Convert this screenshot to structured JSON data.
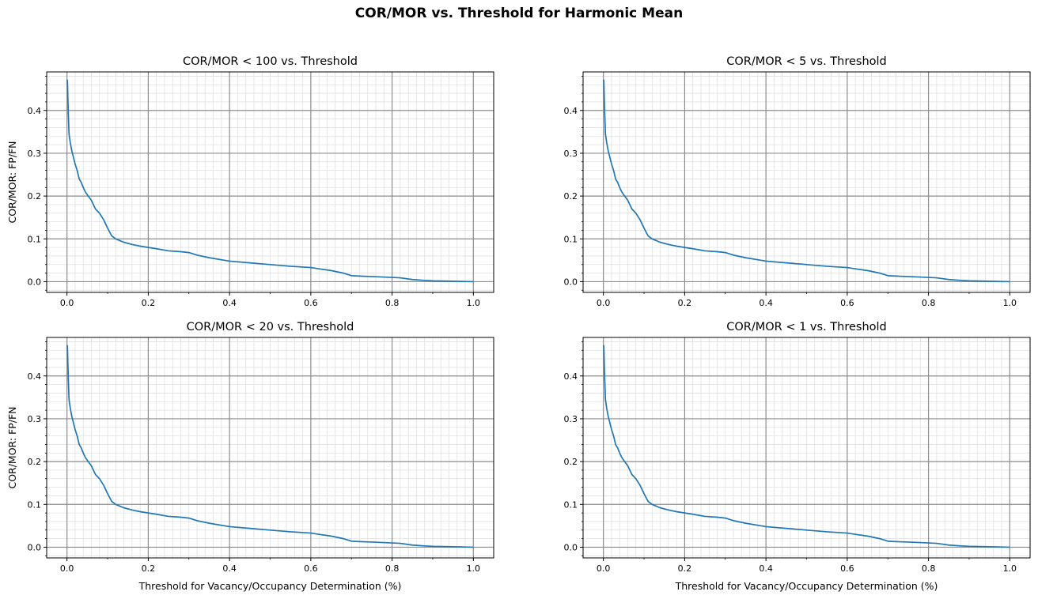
{
  "figure": {
    "suptitle": "COR/MOR vs. Threshold for Harmonic Mean"
  },
  "colors": {
    "line": "#1f77b4",
    "major_grid": "#8c8c8c",
    "minor_grid": "#e0e0e0",
    "axis": "#000000"
  },
  "chart_data": [
    {
      "type": "line",
      "title": "COR/MOR < 100 vs. Threshold",
      "xlabel": "",
      "ylabel": "COR/MOR: FP/FN",
      "xlim": [
        -0.05,
        1.05
      ],
      "ylim": [
        -0.025,
        0.49
      ],
      "xticks": [
        "0.0",
        "0.2",
        "0.4",
        "0.6",
        "0.8",
        "1.0"
      ],
      "yticks": [
        "0.0",
        "0.1",
        "0.2",
        "0.3",
        "0.4"
      ],
      "grid": true,
      "series": [
        {
          "x": [
            0.0,
            0.001,
            0.003,
            0.005,
            0.008,
            0.012,
            0.016,
            0.02,
            0.025,
            0.03,
            0.035,
            0.04,
            0.045,
            0.05,
            0.06,
            0.07,
            0.08,
            0.09,
            0.1,
            0.11,
            0.12,
            0.14,
            0.16,
            0.18,
            0.2,
            0.22,
            0.25,
            0.28,
            0.3,
            0.32,
            0.35,
            0.4,
            0.45,
            0.5,
            0.55,
            0.6,
            0.62,
            0.65,
            0.68,
            0.7,
            0.72,
            0.75,
            0.8,
            0.82,
            0.85,
            0.88,
            0.9,
            0.95,
            1.0
          ],
          "y": [
            0.472,
            0.47,
            0.4,
            0.345,
            0.325,
            0.305,
            0.29,
            0.275,
            0.26,
            0.24,
            0.232,
            0.22,
            0.21,
            0.203,
            0.19,
            0.17,
            0.16,
            0.145,
            0.125,
            0.107,
            0.1,
            0.092,
            0.087,
            0.083,
            0.08,
            0.077,
            0.072,
            0.07,
            0.068,
            0.062,
            0.056,
            0.048,
            0.044,
            0.04,
            0.036,
            0.033,
            0.03,
            0.026,
            0.02,
            0.014,
            0.013,
            0.012,
            0.01,
            0.009,
            0.005,
            0.003,
            0.002,
            0.001,
            0.0
          ]
        }
      ]
    },
    {
      "type": "line",
      "title": "COR/MOR < 5 vs. Threshold",
      "xlabel": "",
      "ylabel": "",
      "xlim": [
        -0.05,
        1.05
      ],
      "ylim": [
        -0.025,
        0.49
      ],
      "xticks": [
        "0.0",
        "0.2",
        "0.4",
        "0.6",
        "0.8",
        "1.0"
      ],
      "yticks": [
        "0.0",
        "0.1",
        "0.2",
        "0.3",
        "0.4"
      ],
      "grid": true,
      "series": [
        {
          "x": [
            0.0,
            0.001,
            0.003,
            0.005,
            0.008,
            0.012,
            0.016,
            0.02,
            0.025,
            0.03,
            0.035,
            0.04,
            0.045,
            0.05,
            0.06,
            0.07,
            0.08,
            0.09,
            0.1,
            0.11,
            0.12,
            0.14,
            0.16,
            0.18,
            0.2,
            0.22,
            0.25,
            0.28,
            0.3,
            0.32,
            0.35,
            0.4,
            0.45,
            0.5,
            0.55,
            0.6,
            0.62,
            0.65,
            0.68,
            0.7,
            0.72,
            0.75,
            0.8,
            0.82,
            0.85,
            0.88,
            0.9,
            0.95,
            1.0
          ],
          "y": [
            0.472,
            0.47,
            0.4,
            0.345,
            0.325,
            0.305,
            0.29,
            0.275,
            0.26,
            0.24,
            0.232,
            0.22,
            0.21,
            0.203,
            0.19,
            0.17,
            0.16,
            0.145,
            0.125,
            0.107,
            0.1,
            0.092,
            0.087,
            0.083,
            0.08,
            0.077,
            0.072,
            0.07,
            0.068,
            0.062,
            0.056,
            0.048,
            0.044,
            0.04,
            0.036,
            0.033,
            0.03,
            0.026,
            0.02,
            0.014,
            0.013,
            0.012,
            0.01,
            0.009,
            0.005,
            0.003,
            0.002,
            0.001,
            0.0
          ]
        }
      ]
    },
    {
      "type": "line",
      "title": "COR/MOR < 20 vs. Threshold",
      "xlabel": "Threshold for Vacancy/Occupancy Determination (%)",
      "ylabel": "COR/MOR: FP/FN",
      "xlim": [
        -0.05,
        1.05
      ],
      "ylim": [
        -0.025,
        0.49
      ],
      "xticks": [
        "0.0",
        "0.2",
        "0.4",
        "0.6",
        "0.8",
        "1.0"
      ],
      "yticks": [
        "0.0",
        "0.1",
        "0.2",
        "0.3",
        "0.4"
      ],
      "grid": true,
      "series": [
        {
          "x": [
            0.0,
            0.001,
            0.003,
            0.005,
            0.008,
            0.012,
            0.016,
            0.02,
            0.025,
            0.03,
            0.035,
            0.04,
            0.045,
            0.05,
            0.06,
            0.07,
            0.08,
            0.09,
            0.1,
            0.11,
            0.12,
            0.14,
            0.16,
            0.18,
            0.2,
            0.22,
            0.25,
            0.28,
            0.3,
            0.32,
            0.35,
            0.4,
            0.45,
            0.5,
            0.55,
            0.6,
            0.62,
            0.65,
            0.68,
            0.7,
            0.72,
            0.75,
            0.8,
            0.82,
            0.85,
            0.88,
            0.9,
            0.95,
            1.0
          ],
          "y": [
            0.472,
            0.47,
            0.4,
            0.345,
            0.325,
            0.305,
            0.29,
            0.275,
            0.26,
            0.24,
            0.232,
            0.22,
            0.21,
            0.203,
            0.19,
            0.17,
            0.16,
            0.145,
            0.125,
            0.107,
            0.1,
            0.092,
            0.087,
            0.083,
            0.08,
            0.077,
            0.072,
            0.07,
            0.068,
            0.062,
            0.056,
            0.048,
            0.044,
            0.04,
            0.036,
            0.033,
            0.03,
            0.026,
            0.02,
            0.014,
            0.013,
            0.012,
            0.01,
            0.009,
            0.005,
            0.003,
            0.002,
            0.001,
            0.0
          ]
        }
      ]
    },
    {
      "type": "line",
      "title": "COR/MOR < 1 vs. Threshold",
      "xlabel": "Threshold for Vacancy/Occupancy Determination (%)",
      "ylabel": "",
      "xlim": [
        -0.05,
        1.05
      ],
      "ylim": [
        -0.025,
        0.49
      ],
      "xticks": [
        "0.0",
        "0.2",
        "0.4",
        "0.6",
        "0.8",
        "1.0"
      ],
      "yticks": [
        "0.0",
        "0.1",
        "0.2",
        "0.3",
        "0.4"
      ],
      "grid": true,
      "series": [
        {
          "x": [
            0.0,
            0.001,
            0.003,
            0.005,
            0.008,
            0.012,
            0.016,
            0.02,
            0.025,
            0.03,
            0.035,
            0.04,
            0.045,
            0.05,
            0.06,
            0.07,
            0.08,
            0.09,
            0.1,
            0.11,
            0.12,
            0.14,
            0.16,
            0.18,
            0.2,
            0.22,
            0.25,
            0.28,
            0.3,
            0.32,
            0.35,
            0.4,
            0.45,
            0.5,
            0.55,
            0.6,
            0.62,
            0.65,
            0.68,
            0.7,
            0.72,
            0.75,
            0.8,
            0.82,
            0.85,
            0.88,
            0.9,
            0.95,
            1.0
          ],
          "y": [
            0.472,
            0.47,
            0.4,
            0.345,
            0.325,
            0.305,
            0.29,
            0.275,
            0.26,
            0.24,
            0.232,
            0.22,
            0.21,
            0.203,
            0.19,
            0.17,
            0.16,
            0.145,
            0.125,
            0.107,
            0.1,
            0.092,
            0.087,
            0.083,
            0.08,
            0.077,
            0.072,
            0.07,
            0.068,
            0.062,
            0.056,
            0.048,
            0.044,
            0.04,
            0.036,
            0.033,
            0.03,
            0.026,
            0.02,
            0.014,
            0.013,
            0.012,
            0.01,
            0.009,
            0.005,
            0.003,
            0.002,
            0.001,
            0.0
          ]
        }
      ]
    }
  ]
}
